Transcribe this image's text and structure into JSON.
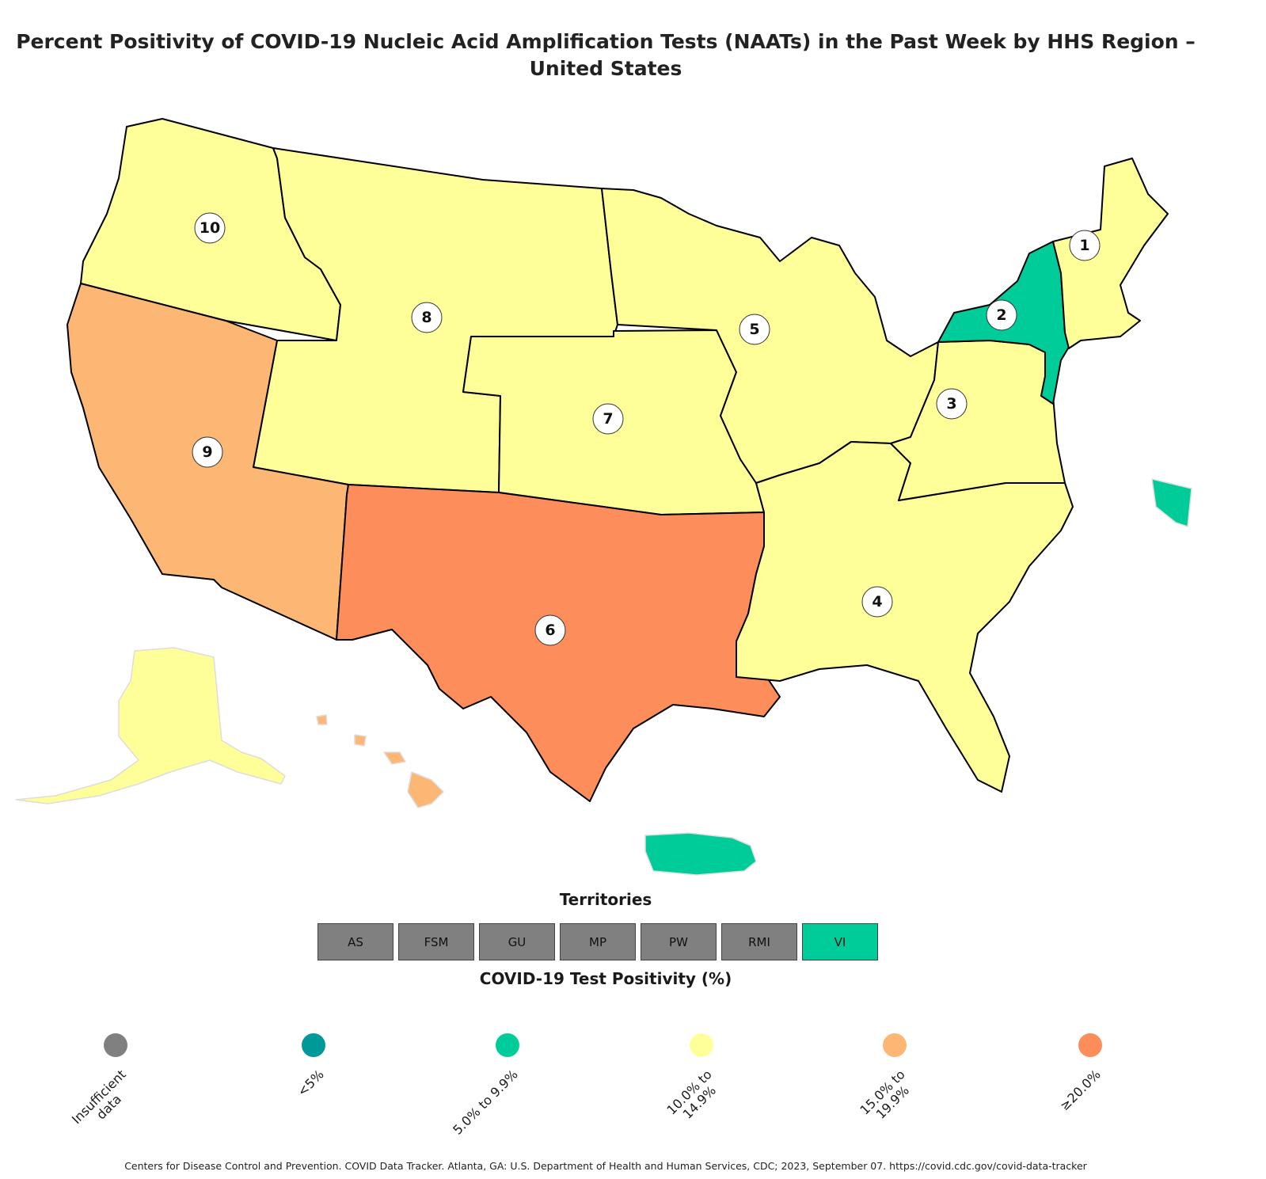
{
  "title_line1": "Percent Positivity of COVID-19 Nucleic Acid Amplification Tests (NAATs) in the Past Week by HHS Region –",
  "title_line2": "United States",
  "colors": {
    "insufficient": "#808080",
    "lt5": "#00999a",
    "c5to9": "#00cc99",
    "c10to14": "#ffff99",
    "c15to19": "#fdb774",
    "c20plus": "#fd8d5a"
  },
  "regions": [
    {
      "id": "1",
      "positivity_category": "10.0% to 14.9%"
    },
    {
      "id": "2",
      "positivity_category": "5.0% to 9.9%"
    },
    {
      "id": "3",
      "positivity_category": "10.0% to 14.9%"
    },
    {
      "id": "4",
      "positivity_category": "10.0% to 14.9%"
    },
    {
      "id": "5",
      "positivity_category": "10.0% to 14.9%"
    },
    {
      "id": "6",
      "positivity_category": "≥20.0%"
    },
    {
      "id": "7",
      "positivity_category": "10.0% to 14.9%"
    },
    {
      "id": "8",
      "positivity_category": "10.0% to 14.9%"
    },
    {
      "id": "9",
      "positivity_category": "15.0% to 19.9%"
    },
    {
      "id": "10",
      "positivity_category": "10.0% to 14.9%"
    }
  ],
  "territories_title": "Territories",
  "territories": [
    {
      "label": "AS",
      "color": "#808080"
    },
    {
      "label": "FSM",
      "color": "#808080"
    },
    {
      "label": "GU",
      "color": "#808080"
    },
    {
      "label": "MP",
      "color": "#808080"
    },
    {
      "label": "PW",
      "color": "#808080"
    },
    {
      "label": "RMI",
      "color": "#808080"
    },
    {
      "label": "VI",
      "color": "#00cc99"
    }
  ],
  "legend_title": "COVID-19 Test Positivity (%)",
  "legend": [
    {
      "label": "Insufficient\ndata",
      "color": "#808080"
    },
    {
      "label": "<5%",
      "color": "#00999a"
    },
    {
      "label": "5.0% to 9.9%",
      "color": "#00cc99"
    },
    {
      "label": "10.0% to\n14.9%",
      "color": "#ffff99"
    },
    {
      "label": "15.0% to\n19.9%",
      "color": "#fdb774"
    },
    {
      "label": "≥20.0%",
      "color": "#fd8d5a"
    }
  ],
  "citation": "Centers for Disease Control and Prevention. COVID Data Tracker. Atlanta, GA: U.S. Department of Health and Human Services, CDC; 2023, September 07. https://covid.cdc.gov/covid-data-tracker"
}
